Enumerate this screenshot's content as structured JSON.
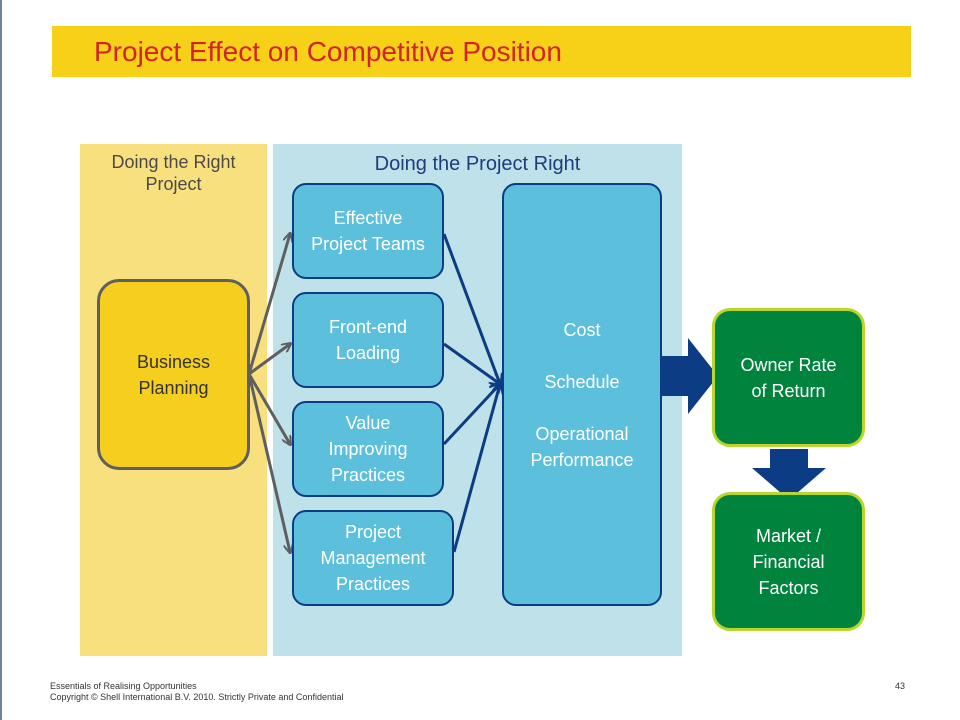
{
  "slide": {
    "title": "Project Effect on Competitive Position",
    "page_number": "43",
    "footer_line1": "Essentials of Realising Opportunities",
    "footer_line2": "Copyright © Shell International B.V. 2010. Strictly Private and Confidential"
  },
  "panels": {
    "left_label": "Doing the Right\nProject",
    "right_label": "Doing the Project Right"
  },
  "nodes": {
    "business_planning": "Business\nPlanning",
    "effective_teams": "Effective\nProject Teams",
    "front_end_loading": "Front-end\nLoading",
    "value_improving": "Value\nImproving\nPractices",
    "pm_practices": "Project\nManagement\nPractices",
    "outcomes": "Cost\n\nSchedule\n\nOperational\nPerformance",
    "owner_return": "Owner Rate\nof Return",
    "market_factors": "Market /\nFinancial\nFactors"
  },
  "colors": {
    "title_bar": "#f7d117",
    "title_text": "#d2232a",
    "left_panel": "#f8e07e",
    "right_panel": "#bfe1ea",
    "box_blue": "#5cc0dc",
    "arrow_navy": "#0b3c84",
    "box_green": "#00843d",
    "box_yellow": "#f5ce1e"
  }
}
